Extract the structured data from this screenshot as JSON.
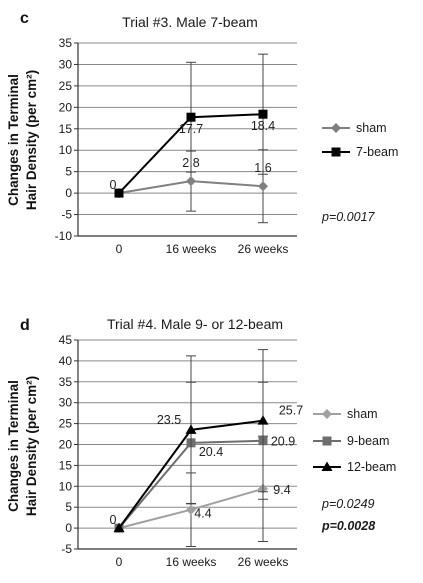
{
  "panels": [
    {
      "letter": "c",
      "pvalues": [
        {
          "text": "p=0.0017",
          "bold": false
        }
      ]
    },
    {
      "letter": "d",
      "pvalues": [
        {
          "text": "p=0.0249",
          "bold": false
        },
        {
          "text": "p=0.0028",
          "bold": true
        }
      ]
    }
  ],
  "chart_data": [
    {
      "type": "line",
      "title": "Trial #3. Male 7-beam",
      "ylabel": "Changes in Terminal Hair Density (per cm²)",
      "xlabel": "",
      "categories": [
        "0",
        "16 weeks",
        "26 weeks"
      ],
      "ylim": [
        -10,
        35
      ],
      "yticks": [
        -10,
        -5,
        0,
        5,
        10,
        15,
        20,
        25,
        30,
        35
      ],
      "grid": "horizontal",
      "legend_position": "right",
      "series": [
        {
          "name": "sham",
          "marker": "diamond",
          "color": "#808080",
          "values": [
            0,
            2.8,
            1.6
          ],
          "labels": [
            "0",
            "2.8",
            "1.6"
          ],
          "error": [
            0,
            7,
            8.5
          ]
        },
        {
          "name": "7-beam",
          "marker": "square",
          "color": "#000000",
          "values": [
            0,
            17.7,
            18.4
          ],
          "labels": [
            "",
            "17.7",
            "18.4"
          ],
          "error": [
            0,
            12.8,
            14
          ]
        }
      ]
    },
    {
      "type": "line",
      "title": "Trial #4. Male 9- or 12-beam",
      "ylabel": "Changes in Terminal Hair Density (per cm²)",
      "xlabel": "",
      "categories": [
        "0",
        "16 weeks",
        "26 weeks"
      ],
      "ylim": [
        -5,
        45
      ],
      "yticks": [
        -5,
        0,
        5,
        10,
        15,
        20,
        25,
        30,
        35,
        40,
        45
      ],
      "grid": "horizontal",
      "legend_position": "right",
      "series": [
        {
          "name": "sham",
          "marker": "diamond",
          "color": "#a0a0a0",
          "values": [
            0,
            4.4,
            9.4
          ],
          "labels": [
            "0",
            "4.4",
            "9.4"
          ],
          "error": [
            0,
            8.8,
            12.6
          ]
        },
        {
          "name": "9-beam",
          "marker": "square",
          "color": "#6e6e6e",
          "values": [
            0,
            20.4,
            20.9
          ],
          "labels": [
            "",
            "20.4",
            "20.9"
          ],
          "error": [
            0,
            14.5,
            14
          ]
        },
        {
          "name": "12-beam",
          "marker": "triangle",
          "color": "#000000",
          "values": [
            0,
            23.5,
            25.7
          ],
          "labels": [
            "",
            "23.5",
            "25.7"
          ],
          "error": [
            0,
            17.7,
            17
          ]
        }
      ]
    }
  ]
}
